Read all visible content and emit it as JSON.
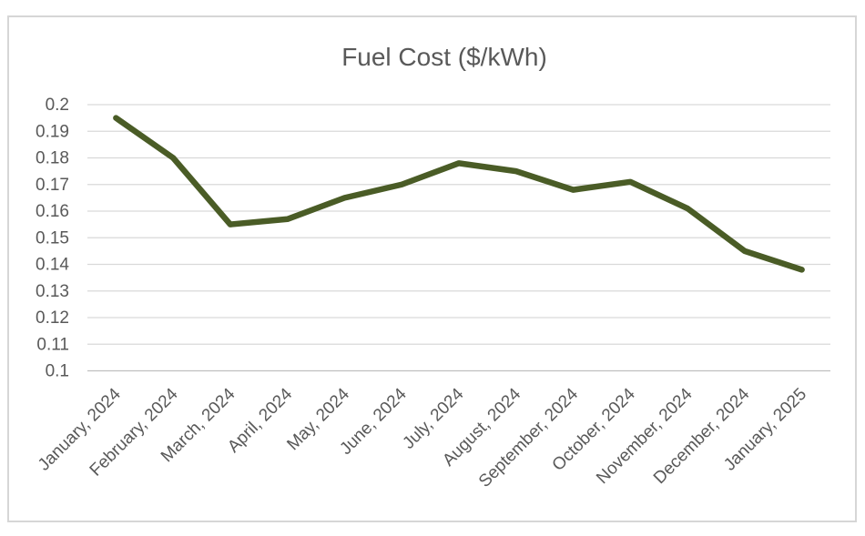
{
  "chart_data": {
    "type": "line",
    "title": "Fuel Cost ($/kWh)",
    "xlabel": "",
    "ylabel": "",
    "categories": [
      "January, 2024",
      "February, 2024",
      "March, 2024",
      "April, 2024",
      "May, 2024",
      "June, 2024",
      "July, 2024",
      "August, 2024",
      "September, 2024",
      "October, 2024",
      "November, 2024",
      "December, 2024",
      "January, 2025"
    ],
    "values": [
      0.195,
      0.18,
      0.155,
      0.157,
      0.165,
      0.17,
      0.178,
      0.175,
      0.168,
      0.171,
      0.161,
      0.145,
      0.138
    ],
    "ylim": [
      0.1,
      0.2
    ],
    "ytick_step": 0.01,
    "ytick_labels": [
      "0.2",
      "0.19",
      "0.18",
      "0.17",
      "0.16",
      "0.15",
      "0.14",
      "0.13",
      "0.12",
      "0.11",
      "0.1"
    ],
    "grid": true,
    "legend": false,
    "x_label_rotation_deg": -45,
    "colors": {
      "line": "#4a5c26",
      "gridline": "#d9d9d9",
      "axis_line": "#bfbfbf",
      "axis_text": "#595959",
      "title_text": "#595959",
      "chart_border": "#d6d6d6",
      "background": "#ffffff"
    }
  }
}
